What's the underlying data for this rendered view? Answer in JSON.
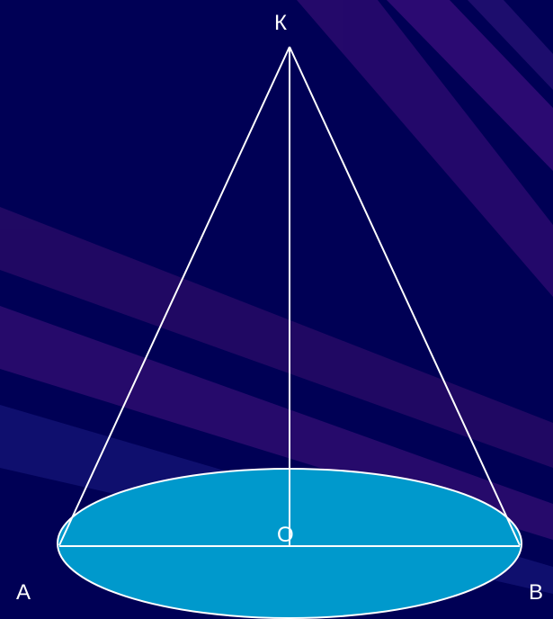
{
  "colors": {
    "background": "#000055",
    "ray": "#2a0a6e",
    "ray_light": "#3b1a86",
    "base_fill": "#0099cc",
    "line": "#ffffff"
  },
  "labels": {
    "apex": "К",
    "left": "А",
    "right": "В",
    "center": "О"
  }
}
